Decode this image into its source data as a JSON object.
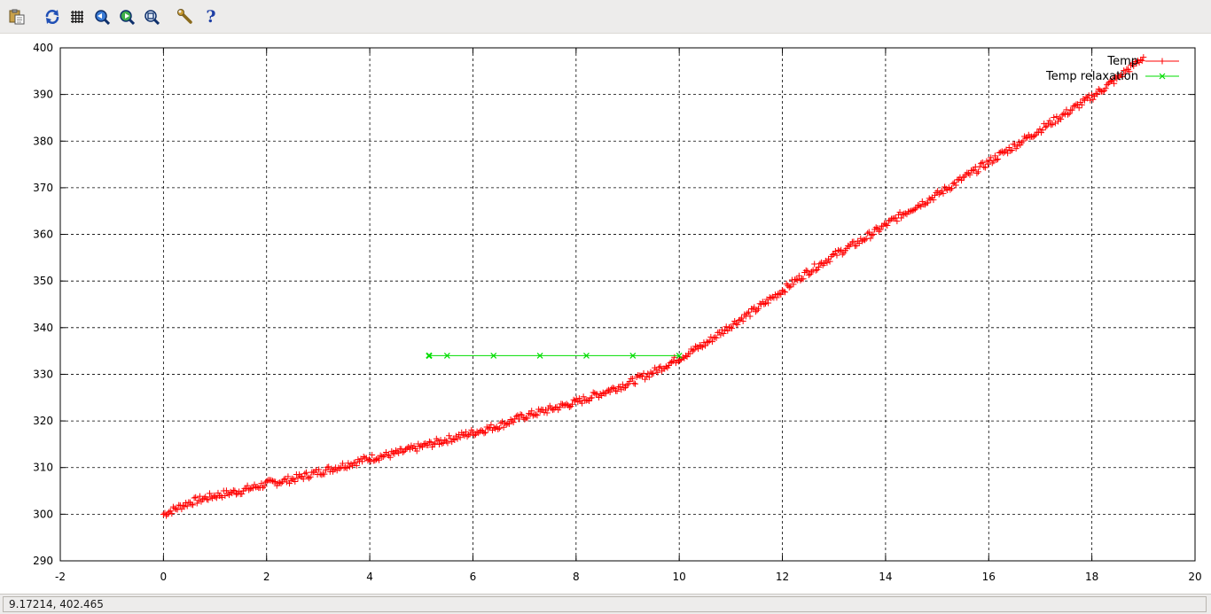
{
  "toolbar": {
    "buttons": [
      {
        "name": "copy-to-clipboard-button",
        "icon": "clipboard-icon"
      },
      {
        "name": "replot-button",
        "icon": "refresh-icon"
      },
      {
        "name": "toggle-grid-button",
        "icon": "grid-icon"
      },
      {
        "name": "zoom-previous-button",
        "icon": "zoom-previous-icon"
      },
      {
        "name": "zoom-next-button",
        "icon": "zoom-next-icon"
      },
      {
        "name": "unzoom-button",
        "icon": "unzoom-icon"
      },
      {
        "name": "configure-button",
        "icon": "wrench-icon"
      },
      {
        "name": "help-button",
        "icon": "help-icon",
        "label": "?"
      }
    ]
  },
  "status": {
    "coordinates": "9.17214,  402.465"
  },
  "colors": {
    "temp": "#ff0000",
    "relaxation": "#00dd00",
    "grid": "#000000",
    "toolbar_bg": "#edeceb"
  },
  "chart_data": {
    "type": "scatter",
    "title": "",
    "xlabel": "",
    "ylabel": "",
    "xlim": [
      -2,
      20
    ],
    "ylim": [
      290,
      400
    ],
    "grid": true,
    "legend_position": "top-right",
    "x_ticks": [
      "-2",
      "0",
      "2",
      "4",
      "6",
      "8",
      "10",
      "12",
      "14",
      "16",
      "18",
      "20"
    ],
    "y_ticks": [
      "290",
      "300",
      "310",
      "320",
      "330",
      "340",
      "350",
      "360",
      "370",
      "380",
      "390",
      "400"
    ],
    "series": [
      {
        "name": "Temp",
        "marker": "plus",
        "color": "#ff0000",
        "x": [
          0,
          0.5,
          1,
          1.5,
          2,
          2.5,
          3,
          3.5,
          4,
          4.5,
          5,
          5.5,
          6,
          6.5,
          7,
          7.5,
          8,
          8.5,
          9,
          9.5,
          10,
          10.5,
          11,
          11.5,
          12,
          12.5,
          13,
          13.5,
          14,
          14.5,
          15,
          15.5,
          16,
          16.5,
          17,
          17.5,
          18,
          18.5,
          19
        ],
        "y": [
          300,
          302.5,
          304,
          305,
          306.5,
          307.5,
          309,
          310.5,
          312,
          313,
          314.5,
          316,
          317.5,
          319,
          321,
          322.5,
          324,
          326,
          328,
          330.5,
          333.5,
          336.5,
          340.5,
          344,
          348,
          352,
          355.5,
          358.5,
          362,
          365.5,
          368.5,
          372,
          375.5,
          379,
          382.5,
          386,
          389.5,
          393.5,
          398
        ]
      },
      {
        "name": "Temp relaxation",
        "marker": "x",
        "color": "#00dd00",
        "x": [
          5.15,
          5.5,
          6.4,
          7.3,
          8.2,
          9.1,
          10
        ],
        "y": [
          334,
          334,
          334,
          334,
          334,
          334,
          334
        ]
      }
    ],
    "legend": [
      "Temp",
      "Temp relaxation"
    ]
  }
}
